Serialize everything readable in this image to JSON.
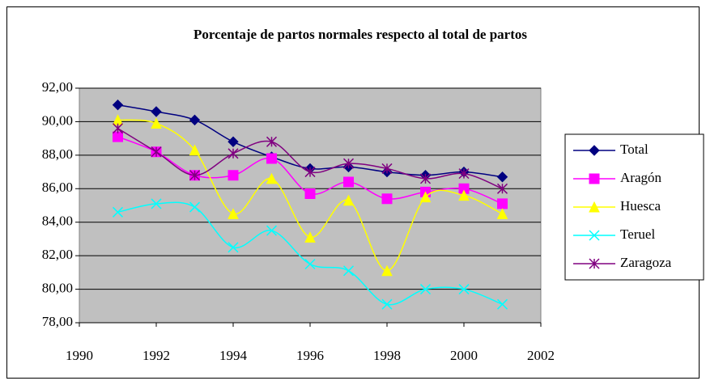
{
  "chart_data": {
    "type": "line",
    "title": "Porcentaje de partos normales respecto al total de partos",
    "x": [
      1991,
      1992,
      1993,
      1994,
      1995,
      1996,
      1997,
      1998,
      1999,
      2000,
      2001
    ],
    "series": [
      {
        "name": "Total",
        "color": "#000080",
        "marker": "diamond",
        "values": [
          91.0,
          90.6,
          90.1,
          88.8,
          87.9,
          87.2,
          87.3,
          87.0,
          86.8,
          87.0,
          86.7
        ]
      },
      {
        "name": "Aragón",
        "color": "#ff00ff",
        "marker": "square",
        "values": [
          89.1,
          88.2,
          86.8,
          86.8,
          87.8,
          85.7,
          86.4,
          85.4,
          85.8,
          86.0,
          85.1
        ]
      },
      {
        "name": "Huesca",
        "color": "#ffff00",
        "marker": "triangle",
        "values": [
          90.1,
          89.9,
          88.3,
          84.5,
          86.6,
          83.1,
          85.3,
          81.1,
          85.5,
          85.6,
          84.5
        ]
      },
      {
        "name": "Teruel",
        "color": "#00ffff",
        "marker": "x",
        "values": [
          84.6,
          85.1,
          84.9,
          82.5,
          83.5,
          81.5,
          81.1,
          79.1,
          80.0,
          80.0,
          79.1
        ]
      },
      {
        "name": "Zaragoza",
        "color": "#800080",
        "marker": "star",
        "values": [
          89.6,
          88.2,
          86.8,
          88.1,
          88.8,
          87.0,
          87.5,
          87.2,
          86.6,
          86.9,
          86.0
        ]
      }
    ],
    "xlim": [
      1990,
      2002
    ],
    "xticks": [
      1990,
      1992,
      1994,
      1996,
      1998,
      2000,
      2002
    ],
    "ylim": [
      78,
      92
    ],
    "yticks": [
      {
        "value": 78,
        "label": "78,00"
      },
      {
        "value": 80,
        "label": "80,00"
      },
      {
        "value": 82,
        "label": "82,00"
      },
      {
        "value": 84,
        "label": "84,00"
      },
      {
        "value": 86,
        "label": "86,00"
      },
      {
        "value": 88,
        "label": "88,00"
      },
      {
        "value": 90,
        "label": "90,00"
      },
      {
        "value": 92,
        "label": "92,00"
      }
    ],
    "grid": true,
    "smooth": true,
    "legend": "right",
    "plot_background": "#c0c0c0"
  }
}
